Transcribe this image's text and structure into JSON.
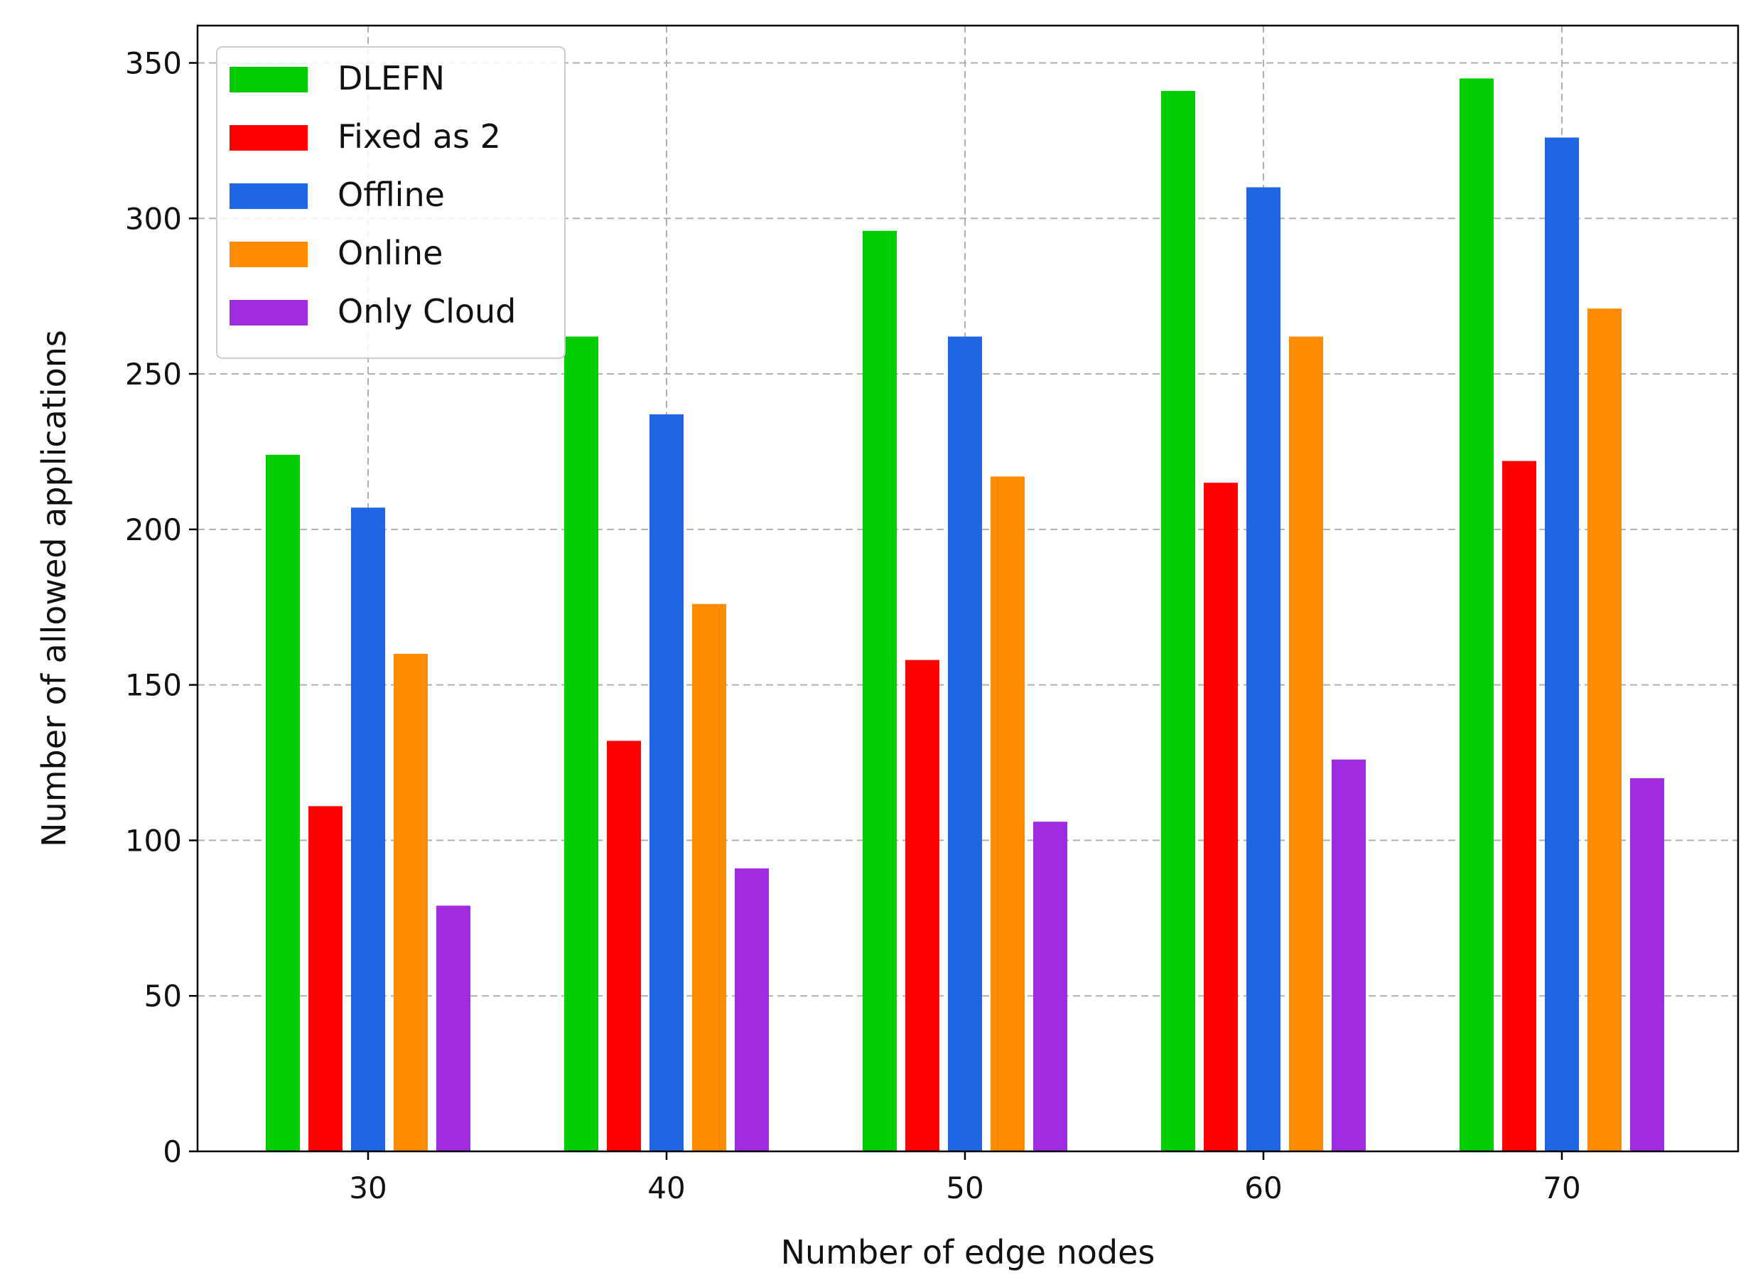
{
  "chart_data": {
    "type": "bar",
    "xlabel": "Number of edge nodes",
    "ylabel": "Number of allowed applications",
    "categories": [
      "30",
      "40",
      "50",
      "60",
      "70"
    ],
    "ylim": [
      0,
      362
    ],
    "yticks": [
      0,
      50,
      100,
      150,
      200,
      250,
      300,
      350
    ],
    "grid": true,
    "legend_position": "upper-left",
    "series": [
      {
        "name": "DLEFN",
        "color": "#00cc00",
        "values": [
          224,
          262,
          296,
          341,
          345
        ]
      },
      {
        "name": "Fixed as 2",
        "color": "#ff0000",
        "values": [
          111,
          132,
          158,
          215,
          222
        ]
      },
      {
        "name": "Offline",
        "color": "#1f66e5",
        "values": [
          207,
          237,
          262,
          310,
          326
        ]
      },
      {
        "name": "Online",
        "color": "#ff8c00",
        "values": [
          160,
          176,
          217,
          262,
          271
        ]
      },
      {
        "name": "Only Cloud",
        "color": "#a02be0",
        "values": [
          79,
          91,
          106,
          126,
          120
        ]
      }
    ]
  }
}
